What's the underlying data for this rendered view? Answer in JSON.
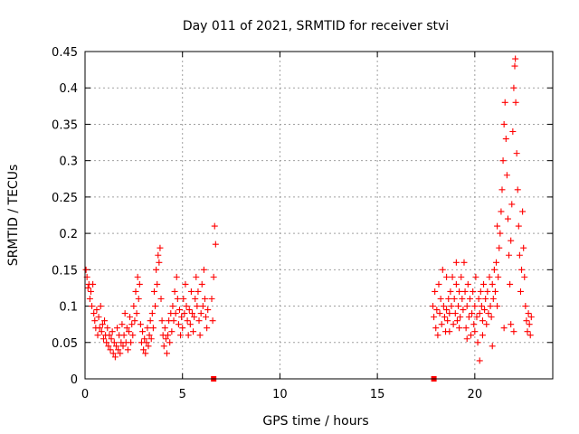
{
  "chart_data": {
    "type": "scatter",
    "title": "Day 011 of 2021, SRMTID for receiver stvi",
    "xlabel": "GPS time / hours",
    "ylabel": "SRMTID / TECUs",
    "xlim": [
      0,
      24
    ],
    "ylim": [
      0,
      0.45
    ],
    "xticks": [
      0,
      5,
      10,
      15,
      20
    ],
    "yticks": [
      0,
      0.05,
      0.1,
      0.15,
      0.2,
      0.25,
      0.3,
      0.35,
      0.4,
      0.45
    ],
    "grid": true,
    "marker": "+",
    "series": [
      {
        "name": "SRMTID",
        "color": "#ff0000",
        "points": [
          [
            0.05,
            0.15
          ],
          [
            0.1,
            0.14
          ],
          [
            0.15,
            0.125
          ],
          [
            0.2,
            0.13
          ],
          [
            0.25,
            0.11
          ],
          [
            0.3,
            0.12
          ],
          [
            0.35,
            0.1
          ],
          [
            0.4,
            0.13
          ],
          [
            0.45,
            0.09
          ],
          [
            0.5,
            0.08
          ],
          [
            0.55,
            0.07
          ],
          [
            0.6,
            0.095
          ],
          [
            0.65,
            0.06
          ],
          [
            0.7,
            0.085
          ],
          [
            0.75,
            0.07
          ],
          [
            0.8,
            0.1
          ],
          [
            0.85,
            0.065
          ],
          [
            0.9,
            0.075
          ],
          [
            0.95,
            0.055
          ],
          [
            1.0,
            0.08
          ],
          [
            1.05,
            0.06
          ],
          [
            1.1,
            0.05
          ],
          [
            1.15,
            0.07
          ],
          [
            1.2,
            0.045
          ],
          [
            1.25,
            0.06
          ],
          [
            1.3,
            0.04
          ],
          [
            1.35,
            0.055
          ],
          [
            1.4,
            0.065
          ],
          [
            1.45,
            0.035
          ],
          [
            1.5,
            0.05
          ],
          [
            1.55,
            0.03
          ],
          [
            1.6,
            0.045
          ],
          [
            1.65,
            0.07
          ],
          [
            1.7,
            0.04
          ],
          [
            1.75,
            0.06
          ],
          [
            1.8,
            0.035
          ],
          [
            1.85,
            0.05
          ],
          [
            1.9,
            0.075
          ],
          [
            1.95,
            0.045
          ],
          [
            2.0,
            0.06
          ],
          [
            2.05,
            0.09
          ],
          [
            2.1,
            0.05
          ],
          [
            2.15,
            0.07
          ],
          [
            2.2,
            0.04
          ],
          [
            2.25,
            0.065
          ],
          [
            2.3,
            0.085
          ],
          [
            2.35,
            0.05
          ],
          [
            2.4,
            0.075
          ],
          [
            2.45,
            0.06
          ],
          [
            2.5,
            0.1
          ],
          [
            2.55,
            0.08
          ],
          [
            2.6,
            0.12
          ],
          [
            2.65,
            0.09
          ],
          [
            2.7,
            0.14
          ],
          [
            2.75,
            0.11
          ],
          [
            2.8,
            0.13
          ],
          [
            2.85,
            0.075
          ],
          [
            2.9,
            0.05
          ],
          [
            2.95,
            0.065
          ],
          [
            3.0,
            0.04
          ],
          [
            3.05,
            0.055
          ],
          [
            3.1,
            0.035
          ],
          [
            3.15,
            0.05
          ],
          [
            3.2,
            0.07
          ],
          [
            3.25,
            0.045
          ],
          [
            3.3,
            0.06
          ],
          [
            3.35,
            0.08
          ],
          [
            3.4,
            0.055
          ],
          [
            3.45,
            0.09
          ],
          [
            3.5,
            0.07
          ],
          [
            3.55,
            0.12
          ],
          [
            3.6,
            0.1
          ],
          [
            3.65,
            0.15
          ],
          [
            3.7,
            0.13
          ],
          [
            3.75,
            0.17
          ],
          [
            3.8,
            0.16
          ],
          [
            3.85,
            0.18
          ],
          [
            3.9,
            0.11
          ],
          [
            3.95,
            0.08
          ],
          [
            4.0,
            0.06
          ],
          [
            4.05,
            0.045
          ],
          [
            4.1,
            0.07
          ],
          [
            4.15,
            0.055
          ],
          [
            4.2,
            0.035
          ],
          [
            4.25,
            0.06
          ],
          [
            4.3,
            0.08
          ],
          [
            4.35,
            0.05
          ],
          [
            4.4,
            0.09
          ],
          [
            4.45,
            0.065
          ],
          [
            4.5,
            0.1
          ],
          [
            4.55,
            0.08
          ],
          [
            4.6,
            0.12
          ],
          [
            4.65,
            0.09
          ],
          [
            4.7,
            0.14
          ],
          [
            4.75,
            0.11
          ],
          [
            4.8,
            0.075
          ],
          [
            4.85,
            0.095
          ],
          [
            4.9,
            0.06
          ],
          [
            4.95,
            0.085
          ],
          [
            5.0,
            0.07
          ],
          [
            5.05,
            0.11
          ],
          [
            5.1,
            0.09
          ],
          [
            5.15,
            0.13
          ],
          [
            5.2,
            0.1
          ],
          [
            5.25,
            0.08
          ],
          [
            5.3,
            0.06
          ],
          [
            5.35,
            0.095
          ],
          [
            5.4,
            0.075
          ],
          [
            5.45,
            0.12
          ],
          [
            5.5,
            0.09
          ],
          [
            5.55,
            0.065
          ],
          [
            5.6,
            0.085
          ],
          [
            5.65,
            0.11
          ],
          [
            5.7,
            0.14
          ],
          [
            5.75,
            0.1
          ],
          [
            5.8,
            0.12
          ],
          [
            5.85,
            0.08
          ],
          [
            5.9,
            0.06
          ],
          [
            5.95,
            0.09
          ],
          [
            6.0,
            0.13
          ],
          [
            6.05,
            0.1
          ],
          [
            6.1,
            0.15
          ],
          [
            6.15,
            0.11
          ],
          [
            6.2,
            0.085
          ],
          [
            6.25,
            0.07
          ],
          [
            6.3,
            0.095
          ],
          [
            6.5,
            0.11
          ],
          [
            6.55,
            0.08
          ],
          [
            6.6,
            0.14
          ],
          [
            6.65,
            0.21
          ],
          [
            6.7,
            0.185
          ],
          [
            17.85,
            0.1
          ],
          [
            17.9,
            0.085
          ],
          [
            17.95,
            0.12
          ],
          [
            18.0,
            0.07
          ],
          [
            18.05,
            0.095
          ],
          [
            18.1,
            0.06
          ],
          [
            18.15,
            0.13
          ],
          [
            18.2,
            0.09
          ],
          [
            18.25,
            0.11
          ],
          [
            18.3,
            0.075
          ],
          [
            18.35,
            0.15
          ],
          [
            18.4,
            0.1
          ],
          [
            18.45,
            0.085
          ],
          [
            18.5,
            0.065
          ],
          [
            18.55,
            0.095
          ],
          [
            18.6,
            0.08
          ],
          [
            18.65,
            0.11
          ],
          [
            18.7,
            0.09
          ],
          [
            18.75,
            0.12
          ],
          [
            18.8,
            0.1
          ],
          [
            18.85,
            0.14
          ],
          [
            18.9,
            0.075
          ],
          [
            18.95,
            0.11
          ],
          [
            19.0,
            0.09
          ],
          [
            19.05,
            0.13
          ],
          [
            19.1,
            0.08
          ],
          [
            19.15,
            0.1
          ],
          [
            19.2,
            0.12
          ],
          [
            19.25,
            0.085
          ],
          [
            19.3,
            0.14
          ],
          [
            19.35,
            0.11
          ],
          [
            19.4,
            0.095
          ],
          [
            19.45,
            0.16
          ],
          [
            19.5,
            0.12
          ],
          [
            19.55,
            0.07
          ],
          [
            19.6,
            0.1
          ],
          [
            19.65,
            0.13
          ],
          [
            19.7,
            0.085
          ],
          [
            19.75,
            0.11
          ],
          [
            19.8,
            0.06
          ],
          [
            19.85,
            0.09
          ],
          [
            19.9,
            0.12
          ],
          [
            19.95,
            0.075
          ],
          [
            20.0,
            0.1
          ],
          [
            20.05,
            0.14
          ],
          [
            20.1,
            0.085
          ],
          [
            20.15,
            0.05
          ],
          [
            20.2,
            0.11
          ],
          [
            20.25,
            0.09
          ],
          [
            20.3,
            0.12
          ],
          [
            20.35,
            0.1
          ],
          [
            20.4,
            0.08
          ],
          [
            20.45,
            0.13
          ],
          [
            20.5,
            0.095
          ],
          [
            20.55,
            0.11
          ],
          [
            20.6,
            0.075
          ],
          [
            20.65,
            0.12
          ],
          [
            20.7,
            0.09
          ],
          [
            20.75,
            0.14
          ],
          [
            20.8,
            0.1
          ],
          [
            20.85,
            0.085
          ],
          [
            20.9,
            0.13
          ],
          [
            20.95,
            0.11
          ],
          [
            21.0,
            0.15
          ],
          [
            21.05,
            0.12
          ],
          [
            21.1,
            0.16
          ],
          [
            21.15,
            0.1
          ],
          [
            21.2,
            0.14
          ],
          [
            21.25,
            0.18
          ],
          [
            21.3,
            0.2
          ],
          [
            21.35,
            0.23
          ],
          [
            21.4,
            0.26
          ],
          [
            21.45,
            0.3
          ],
          [
            21.5,
            0.35
          ],
          [
            21.55,
            0.38
          ],
          [
            21.6,
            0.33
          ],
          [
            21.65,
            0.28
          ],
          [
            21.7,
            0.22
          ],
          [
            21.75,
            0.17
          ],
          [
            21.8,
            0.13
          ],
          [
            21.85,
            0.19
          ],
          [
            21.9,
            0.24
          ],
          [
            21.95,
            0.34
          ],
          [
            22.0,
            0.4
          ],
          [
            22.05,
            0.43
          ],
          [
            22.08,
            0.44
          ],
          [
            22.1,
            0.38
          ],
          [
            22.15,
            0.31
          ],
          [
            22.2,
            0.26
          ],
          [
            22.25,
            0.21
          ],
          [
            22.3,
            0.17
          ],
          [
            22.35,
            0.12
          ],
          [
            22.4,
            0.15
          ],
          [
            22.45,
            0.23
          ],
          [
            22.5,
            0.18
          ],
          [
            22.55,
            0.14
          ],
          [
            22.6,
            0.1
          ],
          [
            22.65,
            0.08
          ],
          [
            22.7,
            0.065
          ],
          [
            22.75,
            0.09
          ],
          [
            22.8,
            0.075
          ],
          [
            22.85,
            0.06
          ],
          [
            22.9,
            0.085
          ],
          [
            20.0,
            0.065
          ],
          [
            19.6,
            0.055
          ],
          [
            20.4,
            0.06
          ],
          [
            18.7,
            0.065
          ],
          [
            21.5,
            0.07
          ],
          [
            22.0,
            0.065
          ],
          [
            19.2,
            0.07
          ],
          [
            20.25,
            0.025
          ],
          [
            21.85,
            0.075
          ],
          [
            18.55,
            0.14
          ],
          [
            19.05,
            0.16
          ],
          [
            21.15,
            0.21
          ],
          [
            20.9,
            0.045
          ]
        ]
      }
    ],
    "markers_at_zero": [
      {
        "x": 6.6,
        "y": 0
      },
      {
        "x": 17.9,
        "y": 0
      }
    ]
  }
}
